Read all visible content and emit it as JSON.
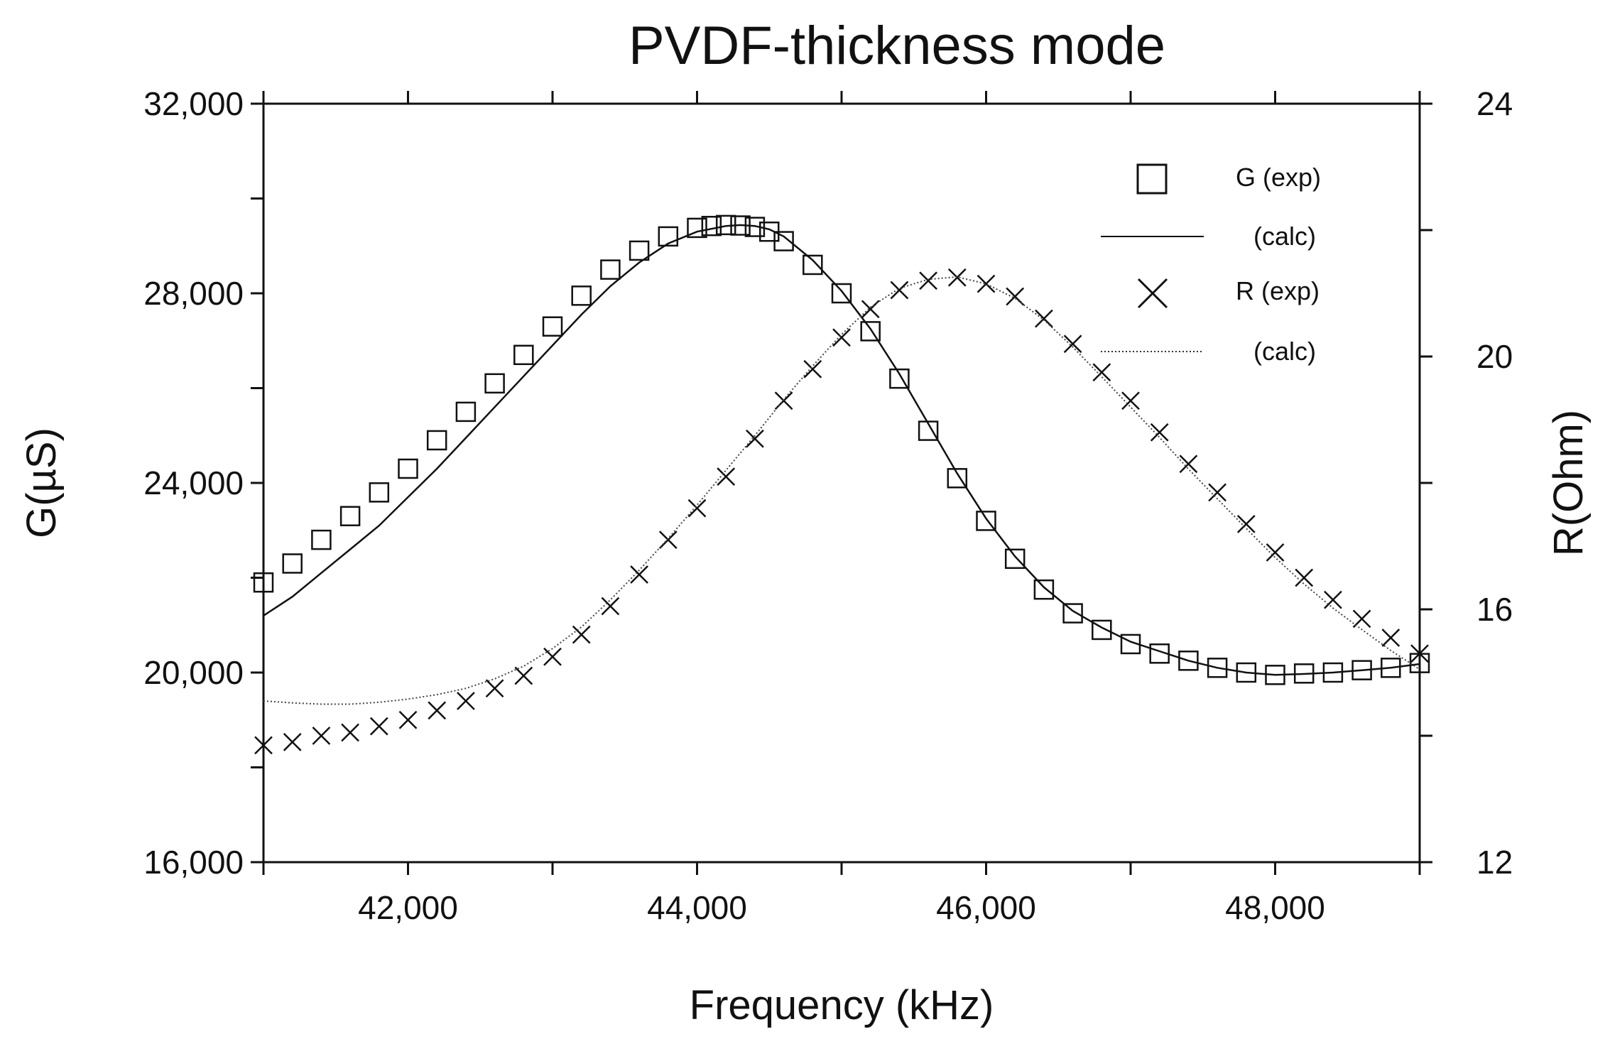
{
  "chart_data": {
    "type": "line",
    "title": "PVDF-thickness mode",
    "xlabel": "Frequency (kHz)",
    "ylabel_left": "G(µS)",
    "ylabel_right": "R(Ohm)",
    "xlim": [
      41000,
      49000
    ],
    "ylim_left": [
      16000,
      32000
    ],
    "ylim_right": [
      12,
      24
    ],
    "x_ticks": [
      42000,
      44000,
      46000,
      48000
    ],
    "x_tick_labels": [
      "42,000",
      "44,000",
      "46,000",
      "48,000"
    ],
    "y_left_ticks": [
      16000,
      20000,
      24000,
      28000,
      32000
    ],
    "y_left_tick_labels": [
      "16,000",
      "20,000",
      "24,000",
      "28,000",
      "32,000"
    ],
    "y_right_ticks": [
      12,
      16,
      20,
      24
    ],
    "y_right_tick_labels": [
      "12",
      "16",
      "20",
      "24"
    ],
    "legend": [
      {
        "label": "G  (exp)",
        "marker": "square"
      },
      {
        "label": "(calc)",
        "line": "solid"
      },
      {
        "label": "R (exp)",
        "marker": "cross"
      },
      {
        "label": "(calc)",
        "line": "dotted"
      }
    ],
    "series": [
      {
        "name": "G (exp)",
        "axis": "left",
        "style": "square",
        "x": [
          41000,
          41200,
          41400,
          41600,
          41800,
          42000,
          42200,
          42400,
          42600,
          42800,
          43000,
          43200,
          43400,
          43600,
          43800,
          44000,
          44100,
          44200,
          44300,
          44400,
          44500,
          44600,
          44800,
          45000,
          45200,
          45400,
          45600,
          45800,
          46000,
          46200,
          46400,
          46600,
          46800,
          47000,
          47200,
          47400,
          47600,
          47800,
          48000,
          48200,
          48400,
          48600,
          48800,
          49000
        ],
        "values": [
          21900,
          22300,
          22800,
          23300,
          23800,
          24300,
          24900,
          25500,
          26100,
          26700,
          27300,
          27950,
          28500,
          28900,
          29200,
          29380,
          29420,
          29440,
          29430,
          29400,
          29300,
          29100,
          28600,
          28000,
          27200,
          26200,
          25100,
          24100,
          23200,
          22400,
          21750,
          21250,
          20900,
          20600,
          20400,
          20250,
          20100,
          20000,
          19950,
          19980,
          20000,
          20050,
          20100,
          20200
        ]
      },
      {
        "name": "G (calc)",
        "axis": "left",
        "style": "solid",
        "x": [
          41000,
          41200,
          41400,
          41600,
          41800,
          42000,
          42200,
          42400,
          42600,
          42800,
          43000,
          43200,
          43400,
          43600,
          43800,
          44000,
          44200,
          44300,
          44400,
          44500,
          44600,
          44800,
          45000,
          45200,
          45400,
          45600,
          45800,
          46000,
          46200,
          46400,
          46600,
          46800,
          47000,
          47200,
          47400,
          47600,
          47800,
          48000,
          48200,
          48400,
          48600,
          48800,
          49000
        ],
        "values": [
          21200,
          21600,
          22100,
          22600,
          23100,
          23700,
          24300,
          24950,
          25600,
          26250,
          26900,
          27550,
          28150,
          28650,
          29050,
          29300,
          29420,
          29440,
          29420,
          29350,
          29200,
          28700,
          28050,
          27250,
          26300,
          25250,
          24200,
          23250,
          22450,
          21800,
          21300,
          20950,
          20650,
          20450,
          20250,
          20100,
          20000,
          19950,
          19970,
          20000,
          20050,
          20100,
          20180
        ]
      },
      {
        "name": "R (exp)",
        "axis": "right",
        "style": "cross",
        "x": [
          41000,
          41200,
          41400,
          41600,
          41800,
          42000,
          42200,
          42400,
          42600,
          42800,
          43000,
          43200,
          43400,
          43600,
          43800,
          44000,
          44200,
          44400,
          44600,
          44800,
          45000,
          45200,
          45400,
          45600,
          45800,
          46000,
          46200,
          46400,
          46600,
          46800,
          47000,
          47200,
          47400,
          47600,
          47800,
          48000,
          48200,
          48400,
          48600,
          48800,
          49000
        ],
        "values": [
          13.85,
          13.9,
          14.0,
          14.05,
          14.15,
          14.25,
          14.4,
          14.55,
          14.75,
          14.95,
          15.25,
          15.6,
          16.05,
          16.55,
          17.1,
          17.6,
          18.1,
          18.7,
          19.3,
          19.8,
          20.3,
          20.75,
          21.05,
          21.2,
          21.25,
          21.15,
          20.95,
          20.6,
          20.2,
          19.75,
          19.3,
          18.8,
          18.3,
          17.85,
          17.35,
          16.9,
          16.5,
          16.15,
          15.85,
          15.55,
          15.3
        ]
      },
      {
        "name": "R (calc)",
        "axis": "right",
        "style": "dotted",
        "x": [
          41000,
          41200,
          41400,
          41600,
          41800,
          42000,
          42200,
          42400,
          42600,
          42800,
          43000,
          43200,
          43400,
          43600,
          43800,
          44000,
          44200,
          44400,
          44600,
          44800,
          45000,
          45200,
          45400,
          45600,
          45800,
          46000,
          46200,
          46400,
          46600,
          46800,
          47000,
          47200,
          47400,
          47600,
          47800,
          48000,
          48200,
          48400,
          48600,
          48800,
          49000
        ],
        "values": [
          14.55,
          14.52,
          14.5,
          14.5,
          14.53,
          14.58,
          14.65,
          14.75,
          14.9,
          15.1,
          15.38,
          15.72,
          16.15,
          16.62,
          17.12,
          17.65,
          18.2,
          18.75,
          19.32,
          19.85,
          20.35,
          20.78,
          21.08,
          21.22,
          21.26,
          21.15,
          20.92,
          20.58,
          20.15,
          19.68,
          19.2,
          18.72,
          18.22,
          17.75,
          17.28,
          16.82,
          16.4,
          16.02,
          15.68,
          15.35,
          15.05
        ]
      }
    ]
  }
}
